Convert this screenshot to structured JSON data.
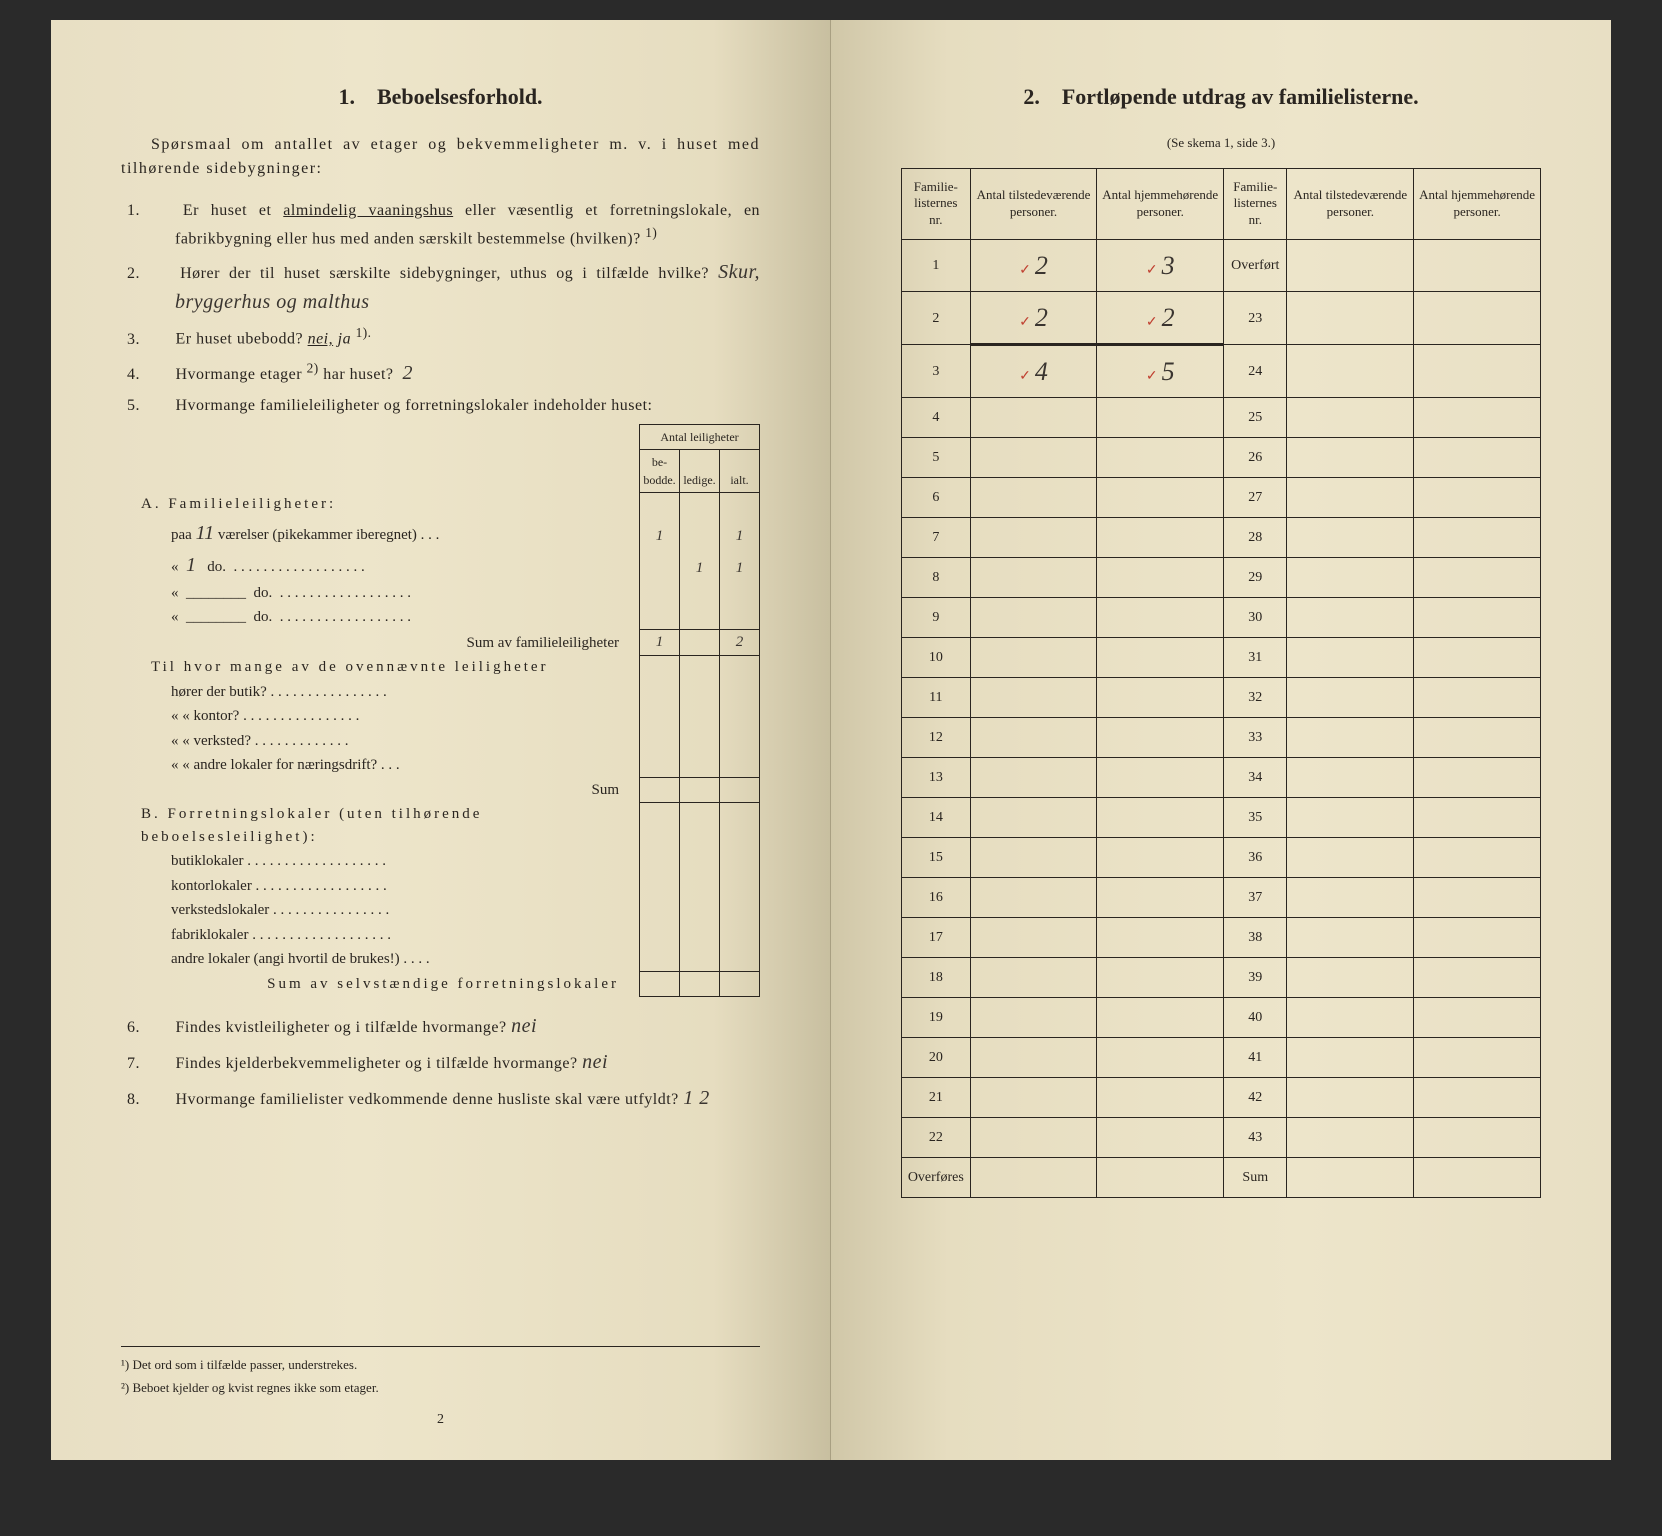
{
  "leftPage": {
    "sectionNumber": "1.",
    "sectionTitle": "Beboelsesforhold.",
    "introText": "Spørsmaal om antallet av etager og bekvemmeligheter m. v. i huset med tilhørende sidebygninger:",
    "q1": {
      "num": "1.",
      "text": "Er huset et",
      "underlined": "almindelig vaaningshus",
      "rest": "eller væsentlig et forretningslokale, en fabrikbygning eller hus med anden særskilt bestemmelse (hvilken)?",
      "sup": "1)"
    },
    "q2": {
      "num": "2.",
      "text": "Hører der til huset særskilte sidebygninger, uthus og i tilfælde hvilke?",
      "answer": "Skur, bryggerhus og malthus"
    },
    "q3": {
      "num": "3.",
      "text": "Er huset ubebodd?",
      "option1": "nei,",
      "option2": "ja",
      "sup": "1)."
    },
    "q4": {
      "num": "4.",
      "text": "Hvormange etager",
      "sup": "2)",
      "rest": "har huset?",
      "answer": "2"
    },
    "q5": {
      "num": "5.",
      "text": "Hvormange familieleiligheter og forretningslokaler indeholder huset:"
    },
    "antalLeiligheter": "Antal leiligheter",
    "colHeaders": {
      "bebodde": "be-bodde.",
      "ledige": "ledige.",
      "ialt": "ialt."
    },
    "sectionA": {
      "title": "A. Familieleiligheter:",
      "line1": "paa",
      "line1val": "11",
      "line1rest": "værelser (pikekammer iberegnet) . . .",
      "line2": "«",
      "line2val": "1",
      "line2rest": "do.",
      "line3": "«",
      "line3rest": "do.",
      "line4": "«",
      "line4rest": "do.",
      "sumLabel": "Sum av familieleiligheter",
      "values": {
        "r1_bebodde": "1",
        "r1_ialt": "1",
        "r2_ledige": "1",
        "r2_ialt": "1",
        "sum_bebodde": "1",
        "sum_ialt": "2"
      },
      "tilHvor": "Til hvor mange av de ovennævnte leiligheter",
      "opt1": "hører der butik? . . . . . . . . . . . . . . . .",
      "opt2": "« « kontor? . . . . . . . . . . . . . . . .",
      "opt3": "« « verksted? . . . . . . . . . . . . .",
      "opt4": "« « andre lokaler for næringsdrift? . . .",
      "sumLabel2": "Sum"
    },
    "sectionB": {
      "title": "B. Forretningslokaler (uten tilhørende beboelsesleilighet):",
      "line1": "butiklokaler . . . . . . . . . . . . . . . . . . .",
      "line2": "kontorlokaler . . . . . . . . . . . . . . . . . .",
      "line3": "verkstedslokaler . . . . . . . . . . . . . . . .",
      "line4": "fabriklokaler . . . . . . . . . . . . . . . . . . .",
      "line5": "andre lokaler (angi hvortil de brukes!) . . . .",
      "sumLabel": "Sum av selvstændige forretningslokaler"
    },
    "q6": {
      "num": "6.",
      "text": "Findes kvistleiligheter og i tilfælde hvormange?",
      "answer": "nei"
    },
    "q7": {
      "num": "7.",
      "text": "Findes kjelderbekvemmeligheter og i tilfælde hvormange?",
      "answer": "nei"
    },
    "q8": {
      "num": "8.",
      "text": "Hvormange familielister vedkommende denne husliste skal være utfyldt?",
      "answer": "1  2"
    },
    "footnote1": "¹) Det ord som i tilfælde passer, understrekes.",
    "footnote2": "²) Beboet kjelder og kvist regnes ikke som etager.",
    "pageNum": "2"
  },
  "rightPage": {
    "sectionNumber": "2.",
    "sectionTitle": "Fortløpende utdrag av familielisterne.",
    "subtitle": "(Se skema 1, side 3.)",
    "headers": {
      "col1": "Familie-listernes nr.",
      "col2": "Antal tilstedeværende personer.",
      "col3": "Antal hjemmehørende personer.",
      "col4": "Familie-listernes nr.",
      "col5": "Antal tilstedeværende personer.",
      "col6": "Antal hjemmehørende personer."
    },
    "rows": [
      {
        "n1": "1",
        "v1": "2",
        "v2": "3",
        "n2": "Overført",
        "check": true
      },
      {
        "n1": "2",
        "v1": "2",
        "v2": "2",
        "n2": "23",
        "check": true,
        "strike": true
      },
      {
        "n1": "3",
        "v1": "4",
        "v2": "5",
        "n2": "24",
        "check": true
      },
      {
        "n1": "4",
        "n2": "25"
      },
      {
        "n1": "5",
        "n2": "26"
      },
      {
        "n1": "6",
        "n2": "27"
      },
      {
        "n1": "7",
        "n2": "28"
      },
      {
        "n1": "8",
        "n2": "29"
      },
      {
        "n1": "9",
        "n2": "30"
      },
      {
        "n1": "10",
        "n2": "31"
      },
      {
        "n1": "11",
        "n2": "32"
      },
      {
        "n1": "12",
        "n2": "33"
      },
      {
        "n1": "13",
        "n2": "34"
      },
      {
        "n1": "14",
        "n2": "35"
      },
      {
        "n1": "15",
        "n2": "36"
      },
      {
        "n1": "16",
        "n2": "37"
      },
      {
        "n1": "17",
        "n2": "38"
      },
      {
        "n1": "18",
        "n2": "39"
      },
      {
        "n1": "19",
        "n2": "40"
      },
      {
        "n1": "20",
        "n2": "41"
      },
      {
        "n1": "21",
        "n2": "42"
      },
      {
        "n1": "22",
        "n2": "43"
      },
      {
        "n1": "Overføres",
        "n2": "Sum"
      }
    ]
  },
  "colors": {
    "pageBg": "#ede5ca",
    "text": "#2a2520",
    "checkMark": "#c04030"
  }
}
